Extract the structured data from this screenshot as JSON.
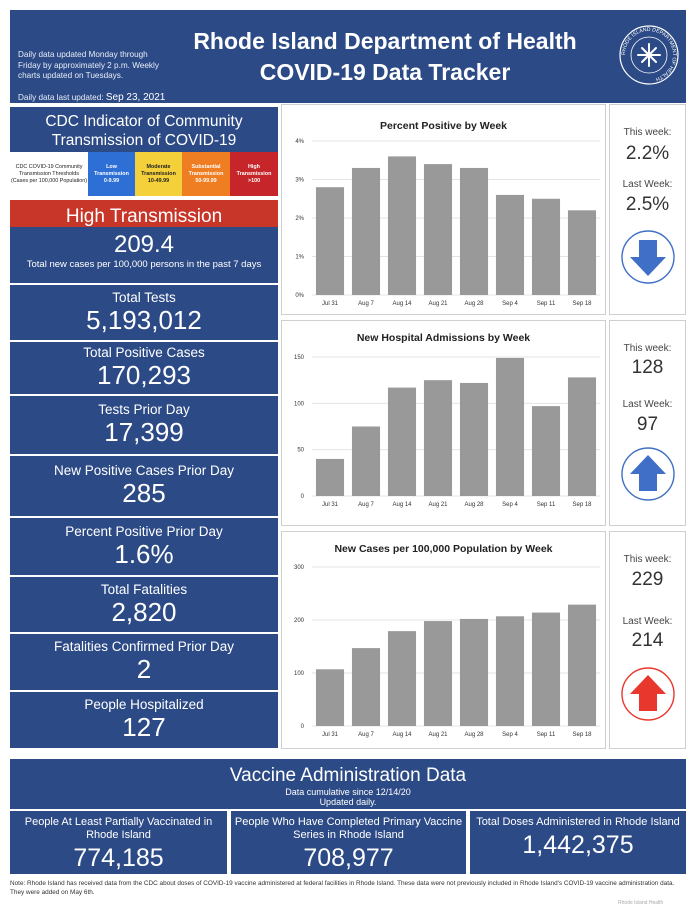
{
  "header": {
    "note": "Daily data updated Monday through Friday by approximately 2 p.m. Weekly charts updated on Tuesdays.",
    "updated_label": "Daily data last updated:",
    "updated_date": "Sep 23, 2021",
    "title_line1": "Rhode Island Department of Health",
    "title_line2": "COVID-19 Data Tracker",
    "seal_text": "RHODE ISLAND DEPARTMENT OF HEALTH"
  },
  "cdc": {
    "title": "CDC Indicator of Community Transmission of COVID-19",
    "legend_desc": "CDC COVID-19 Community Transmission Thresholds (Cases per 100,000 Population)",
    "levels": [
      {
        "name": "Low Transmission",
        "range": "0-9.99"
      },
      {
        "name": "Moderate Transmission",
        "range": "10-49.99"
      },
      {
        "name": "Substantial Transmission",
        "range": "50-99.99"
      },
      {
        "name": "High Transmission",
        "range": ">100"
      }
    ],
    "current_level": "High Transmission",
    "rate": "209.4",
    "rate_label": "Total new cases per 100,000 persons in the past 7 days"
  },
  "stats": {
    "total_tests_label": "Total Tests",
    "total_tests": "5,193,012",
    "total_positive_label": "Total Positive Cases",
    "total_positive": "170,293",
    "tests_prior_label": "Tests Prior Day",
    "tests_prior": "17,399",
    "new_pos_label": "New Positive Cases Prior Day",
    "new_pos": "285",
    "pct_pos_label": "Percent Positive Prior Day",
    "pct_pos": "1.6%",
    "fatalities_label": "Total Fatalities",
    "fatalities": "2,820",
    "fat_prior_label": "Fatalities Confirmed Prior Day",
    "fat_prior": "2",
    "hosp_label": "People Hospitalized",
    "hosp": "127"
  },
  "side": {
    "this_week_label": "This week:",
    "last_week_label": "Last Week:",
    "pct": {
      "this": "2.2%",
      "last": "2.5%",
      "trend": "down",
      "color": "#3f6fc6"
    },
    "hosp": {
      "this": "128",
      "last": "97",
      "trend": "up",
      "color": "#3f6fc6"
    },
    "cases": {
      "this": "229",
      "last": "214",
      "trend": "up",
      "color": "#e8372c"
    }
  },
  "chart_data": [
    {
      "type": "bar",
      "title": "Percent Positive by Week",
      "categories": [
        "Jul 31",
        "Aug 7",
        "Aug 14",
        "Aug 21",
        "Aug 28",
        "Sep 4",
        "Sep 11",
        "Sep 18"
      ],
      "values": [
        2.8,
        3.3,
        3.6,
        3.4,
        3.3,
        2.6,
        2.5,
        2.2
      ],
      "yticks": [
        "0%",
        "1%",
        "2%",
        "3%",
        "4%"
      ],
      "ylim": [
        0,
        4
      ]
    },
    {
      "type": "bar",
      "title": "New Hospital Admissions by Week",
      "categories": [
        "Jul 31",
        "Aug 7",
        "Aug 14",
        "Aug 21",
        "Aug 28",
        "Sep 4",
        "Sep 11",
        "Sep 18"
      ],
      "values": [
        40,
        75,
        117,
        125,
        122,
        149,
        97,
        128
      ],
      "yticks": [
        "0",
        "50",
        "100",
        "150"
      ],
      "ylim": [
        0,
        150
      ]
    },
    {
      "type": "bar",
      "title": "New Cases per 100,000 Population by Week",
      "categories": [
        "Jul 31",
        "Aug 7",
        "Aug 14",
        "Aug 21",
        "Aug 28",
        "Sep 4",
        "Sep 11",
        "Sep 18"
      ],
      "values": [
        107,
        147,
        179,
        198,
        202,
        207,
        214,
        229
      ],
      "yticks": [
        "0",
        "100",
        "200",
        "300"
      ],
      "ylim": [
        0,
        300
      ]
    }
  ],
  "vaccine": {
    "title": "Vaccine Administration Data",
    "sub1": "Data cumulative since 12/14/20",
    "sub2": "Updated daily.",
    "partial_label": "People At Least Partially Vaccinated in Rhode Island",
    "partial": "774,185",
    "complete_label": "People Who Have Completed Primary Vaccine Series in Rhode Island",
    "complete": "708,977",
    "doses_label": "Total Doses Administered in Rhode Island",
    "doses": "1,442,375"
  },
  "footnote": "Note: Rhode Island has received data from the CDC about doses of COVID-19 vaccine administered at federal facilities in Rhode Island. These data were not previously included in Rhode Island's COVID-19 vaccine administration data. They were added on May 6th.",
  "watermark": "Rhode Island Health",
  "colors": {
    "navy": "#2c4a86",
    "bar": "#999999",
    "high": "#c8362a"
  }
}
